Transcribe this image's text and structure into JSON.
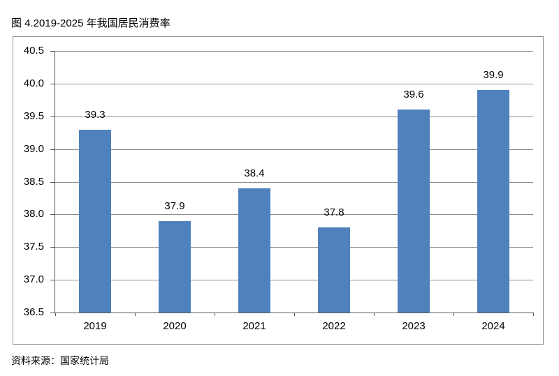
{
  "title": "图 4.2019-2025 年我国居民消费率",
  "source_note": "资料来源：国家统计局",
  "chart_data": {
    "type": "bar",
    "title": "图 4.2019-2025 年我国居民消费率",
    "categories": [
      "2019",
      "2020",
      "2021",
      "2022",
      "2023",
      "2024"
    ],
    "values": [
      39.3,
      37.9,
      38.4,
      37.8,
      39.6,
      39.9
    ],
    "data_labels": [
      "39.3",
      "37.9",
      "38.4",
      "37.8",
      "39.6",
      "39.9"
    ],
    "xlabel": "",
    "ylabel": "",
    "ylim": [
      36.5,
      40.5
    ],
    "ytick_step": 0.5,
    "ytick_labels": [
      "40.5",
      "40.0",
      "39.5",
      "39.0",
      "38.5",
      "38.0",
      "37.5",
      "37.0",
      "36.5"
    ],
    "grid": true,
    "legend": "none",
    "source": "资料来源：国家统计局"
  },
  "colors": {
    "bar": "#4F81BD",
    "gridline": "#8c8c8c",
    "axis": "#595959",
    "frame_border": "#8f8f8f",
    "text": "#000000",
    "background": "#ffffff"
  }
}
